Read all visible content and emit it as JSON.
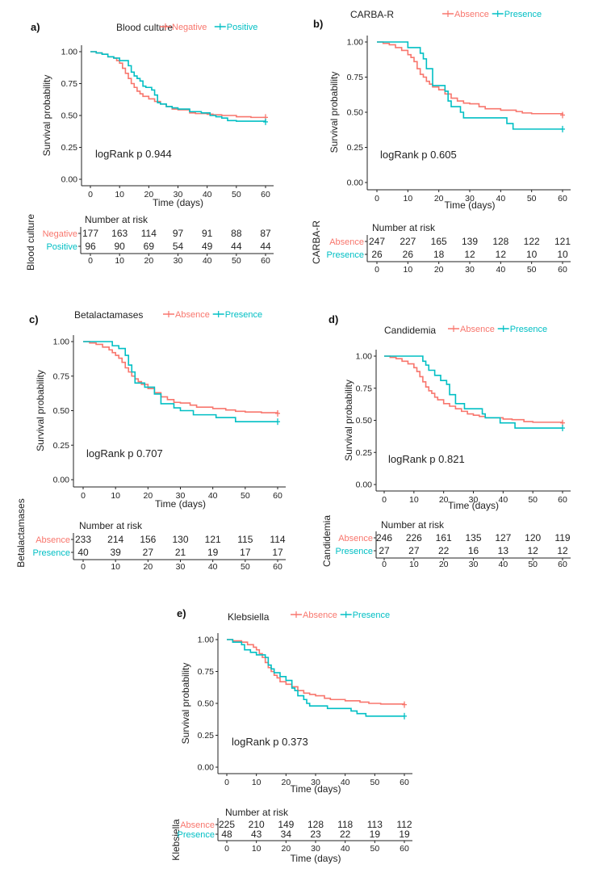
{
  "colors": {
    "group1": "#F8766D",
    "group2": "#00BFC4",
    "axis": "#222222"
  },
  "chart_data": [
    {
      "type": "line",
      "panel": "a)",
      "title": "Blood culture",
      "xlabel": "Time (days)",
      "ylabel": "Survival probability",
      "xlim": [
        0,
        60
      ],
      "ylim": [
        0,
        1
      ],
      "xticks": [
        "0",
        "10",
        "20",
        "30",
        "40",
        "50",
        "60"
      ],
      "yticks": [
        "0.00",
        "0.25",
        "0.50",
        "0.75",
        "1.00"
      ],
      "annotation": "logRank p 0.944",
      "legend_position": "top",
      "series": [
        {
          "name": "Negative",
          "color": "#F8766D",
          "x": [
            0,
            2,
            4,
            6,
            8,
            9,
            10,
            11,
            12,
            13,
            14,
            15,
            16,
            17,
            18,
            20,
            22,
            24,
            26,
            28,
            30,
            34,
            36,
            40,
            42,
            45,
            50,
            55,
            60
          ],
          "y": [
            1,
            0.99,
            0.98,
            0.96,
            0.95,
            0.93,
            0.91,
            0.87,
            0.83,
            0.79,
            0.75,
            0.72,
            0.69,
            0.67,
            0.65,
            0.63,
            0.61,
            0.59,
            0.57,
            0.55,
            0.545,
            0.52,
            0.515,
            0.51,
            0.505,
            0.5,
            0.49,
            0.485,
            0.485
          ]
        },
        {
          "name": "Positive",
          "color": "#00BFC4",
          "x": [
            0,
            2,
            4,
            6,
            8,
            10,
            13,
            14,
            15,
            16,
            17,
            18,
            19,
            21,
            22,
            23,
            24,
            26,
            28,
            30,
            34,
            38,
            41,
            43,
            45,
            47,
            50,
            60
          ],
          "y": [
            1,
            0.99,
            0.98,
            0.96,
            0.95,
            0.93,
            0.89,
            0.84,
            0.81,
            0.79,
            0.77,
            0.73,
            0.72,
            0.7,
            0.66,
            0.6,
            0.59,
            0.57,
            0.56,
            0.55,
            0.53,
            0.52,
            0.5,
            0.49,
            0.48,
            0.46,
            0.455,
            0.45
          ]
        }
      ],
      "risk_table": {
        "title": "Number at risk",
        "strata_label": "Blood culture",
        "rows": [
          {
            "name": "Negative",
            "values": [
              "177",
              "163",
              "114",
              "97",
              "91",
              "88",
              "87"
            ]
          },
          {
            "name": "Positive",
            "values": [
              "96",
              "90",
              "69",
              "54",
              "49",
              "44",
              "44"
            ]
          }
        ]
      }
    },
    {
      "type": "line",
      "panel": "b)",
      "title": "CARBA-R",
      "xlabel": "Time (days)",
      "ylabel": "Survival probability",
      "xlim": [
        0,
        60
      ],
      "ylim": [
        0,
        1
      ],
      "xticks": [
        "0",
        "10",
        "20",
        "30",
        "40",
        "50",
        "60"
      ],
      "yticks": [
        "0.00",
        "0.25",
        "0.50",
        "0.75",
        "1.00"
      ],
      "annotation": "logRank p 0.605",
      "legend_position": "top",
      "series": [
        {
          "name": "Absence",
          "color": "#F8766D",
          "x": [
            0,
            2,
            4,
            6,
            8,
            10,
            11,
            12,
            13,
            14,
            15,
            16,
            17,
            18,
            20,
            22,
            24,
            26,
            28,
            30,
            33,
            35,
            40,
            45,
            47,
            50,
            60
          ],
          "y": [
            1,
            0.99,
            0.98,
            0.96,
            0.94,
            0.91,
            0.89,
            0.86,
            0.81,
            0.77,
            0.75,
            0.72,
            0.7,
            0.68,
            0.66,
            0.63,
            0.6,
            0.58,
            0.565,
            0.56,
            0.54,
            0.525,
            0.515,
            0.505,
            0.495,
            0.49,
            0.48
          ]
        },
        {
          "name": "Presence",
          "color": "#00BFC4",
          "x": [
            0,
            10,
            13,
            14,
            15,
            16,
            18,
            22,
            23,
            24,
            27,
            28,
            42,
            44,
            60
          ],
          "y": [
            1,
            0.96,
            0.96,
            0.92,
            0.88,
            0.81,
            0.69,
            0.65,
            0.58,
            0.54,
            0.5,
            0.46,
            0.42,
            0.38,
            0.38
          ]
        }
      ],
      "risk_table": {
        "title": "Number at risk",
        "strata_label": "CARBA-R",
        "rows": [
          {
            "name": "Absence",
            "values": [
              "247",
              "227",
              "165",
              "139",
              "128",
              "122",
              "121"
            ]
          },
          {
            "name": "Presence",
            "values": [
              "26",
              "26",
              "18",
              "12",
              "12",
              "10",
              "10"
            ]
          }
        ]
      }
    },
    {
      "type": "line",
      "panel": "c)",
      "title": "Betalactamases",
      "xlabel": "Time (days)",
      "ylabel": "Survival probability",
      "xlim": [
        0,
        60
      ],
      "ylim": [
        0,
        1
      ],
      "xticks": [
        "0",
        "10",
        "20",
        "30",
        "40",
        "50",
        "60"
      ],
      "yticks": [
        "0.00",
        "0.25",
        "0.50",
        "0.75",
        "1.00"
      ],
      "annotation": "logRank p 0.707",
      "legend_position": "top",
      "series": [
        {
          "name": "Absence",
          "color": "#F8766D",
          "x": [
            0,
            2,
            4,
            6,
            8,
            9,
            10,
            11,
            12,
            13,
            14,
            15,
            16,
            17,
            18,
            20,
            22,
            24,
            26,
            28,
            30,
            33,
            35,
            40,
            44,
            47,
            50,
            55,
            60
          ],
          "y": [
            1,
            0.99,
            0.98,
            0.96,
            0.94,
            0.92,
            0.9,
            0.88,
            0.85,
            0.81,
            0.78,
            0.75,
            0.73,
            0.71,
            0.69,
            0.66,
            0.63,
            0.6,
            0.58,
            0.56,
            0.555,
            0.54,
            0.525,
            0.515,
            0.505,
            0.495,
            0.49,
            0.485,
            0.48
          ]
        },
        {
          "name": "Presence",
          "color": "#00BFC4",
          "x": [
            0,
            9,
            11,
            13,
            14,
            15,
            16,
            19,
            22,
            24,
            28,
            30,
            34,
            41,
            47,
            60
          ],
          "y": [
            1,
            0.97,
            0.95,
            0.9,
            0.83,
            0.78,
            0.7,
            0.67,
            0.62,
            0.55,
            0.52,
            0.5,
            0.47,
            0.45,
            0.42,
            0.42
          ]
        }
      ],
      "risk_table": {
        "title": "Number at risk",
        "strata_label": "Betalactamases",
        "rows": [
          {
            "name": "Absence",
            "values": [
              "233",
              "214",
              "156",
              "130",
              "121",
              "115",
              "114"
            ]
          },
          {
            "name": "Presence",
            "values": [
              "40",
              "39",
              "27",
              "21",
              "19",
              "17",
              "17"
            ]
          }
        ]
      }
    },
    {
      "type": "line",
      "panel": "d)",
      "title": "Candidemia",
      "xlabel": "Time (days)",
      "ylabel": "Survival probability",
      "xlim": [
        0,
        60
      ],
      "ylim": [
        0,
        1
      ],
      "xticks": [
        "0",
        "10",
        "20",
        "30",
        "40",
        "50",
        "60"
      ],
      "yticks": [
        "0.00",
        "0.25",
        "0.50",
        "0.75",
        "1.00"
      ],
      "annotation": "logRank p 0.821",
      "legend_position": "top",
      "series": [
        {
          "name": "Absence",
          "color": "#F8766D",
          "x": [
            0,
            2,
            4,
            6,
            8,
            10,
            11,
            12,
            13,
            14,
            15,
            16,
            17,
            18,
            20,
            22,
            24,
            26,
            28,
            30,
            32,
            34,
            40,
            43,
            47,
            50,
            60
          ],
          "y": [
            1,
            0.99,
            0.98,
            0.96,
            0.94,
            0.91,
            0.88,
            0.84,
            0.8,
            0.76,
            0.73,
            0.71,
            0.68,
            0.66,
            0.63,
            0.61,
            0.59,
            0.57,
            0.55,
            0.54,
            0.53,
            0.52,
            0.51,
            0.505,
            0.49,
            0.485,
            0.48
          ]
        },
        {
          "name": "Presence",
          "color": "#00BFC4",
          "x": [
            0,
            13,
            14,
            15,
            17,
            19,
            21,
            22,
            24,
            27,
            33,
            34,
            35,
            39,
            44,
            60
          ],
          "y": [
            1,
            0.96,
            0.93,
            0.89,
            0.85,
            0.81,
            0.78,
            0.7,
            0.63,
            0.59,
            0.55,
            0.52,
            0.52,
            0.48,
            0.44,
            0.44
          ]
        }
      ],
      "risk_table": {
        "title": "Number at risk",
        "strata_label": "Candidemia",
        "rows": [
          {
            "name": "Absence",
            "values": [
              "246",
              "226",
              "161",
              "135",
              "127",
              "120",
              "119"
            ]
          },
          {
            "name": "Presence",
            "values": [
              "27",
              "27",
              "22",
              "16",
              "13",
              "12",
              "12"
            ]
          }
        ]
      }
    },
    {
      "type": "line",
      "panel": "e)",
      "title": "Klebsiella",
      "xlabel": "Time (days)",
      "ylabel": "Survival probability",
      "xlim": [
        0,
        60
      ],
      "ylim": [
        0,
        1
      ],
      "xticks": [
        "0",
        "10",
        "20",
        "30",
        "40",
        "50",
        "60"
      ],
      "yticks": [
        "0.00",
        "0.25",
        "0.50",
        "0.75",
        "1.00"
      ],
      "annotation": "logRank p 0.373",
      "legend_position": "top",
      "series": [
        {
          "name": "Absence",
          "color": "#F8766D",
          "x": [
            0,
            2,
            5,
            7,
            9,
            10,
            11,
            12,
            13,
            14,
            15,
            16,
            17,
            18,
            20,
            22,
            24,
            26,
            28,
            30,
            33,
            35,
            40,
            45,
            48,
            52,
            60
          ],
          "y": [
            1,
            0.99,
            0.98,
            0.96,
            0.94,
            0.92,
            0.89,
            0.86,
            0.82,
            0.78,
            0.75,
            0.72,
            0.7,
            0.67,
            0.65,
            0.63,
            0.6,
            0.58,
            0.57,
            0.56,
            0.54,
            0.53,
            0.52,
            0.51,
            0.5,
            0.495,
            0.49
          ]
        },
        {
          "name": "Presence",
          "color": "#00BFC4",
          "x": [
            0,
            2,
            5,
            6,
            8,
            10,
            13,
            14,
            15,
            16,
            18,
            20,
            22,
            23,
            24,
            26,
            27,
            28,
            34,
            42,
            44,
            47,
            60
          ],
          "y": [
            1,
            0.98,
            0.96,
            0.92,
            0.9,
            0.88,
            0.86,
            0.8,
            0.77,
            0.74,
            0.71,
            0.68,
            0.62,
            0.6,
            0.56,
            0.53,
            0.5,
            0.48,
            0.46,
            0.44,
            0.42,
            0.4,
            0.4
          ]
        }
      ],
      "risk_table": {
        "title": "Number at risk",
        "strata_label": "Klebsiella",
        "xlabel": "Time (days)",
        "rows": [
          {
            "name": "Absence",
            "values": [
              "225",
              "210",
              "149",
              "128",
              "118",
              "113",
              "112"
            ]
          },
          {
            "name": "Presence",
            "values": [
              "48",
              "43",
              "34",
              "23",
              "22",
              "19",
              "19"
            ]
          }
        ]
      }
    }
  ]
}
